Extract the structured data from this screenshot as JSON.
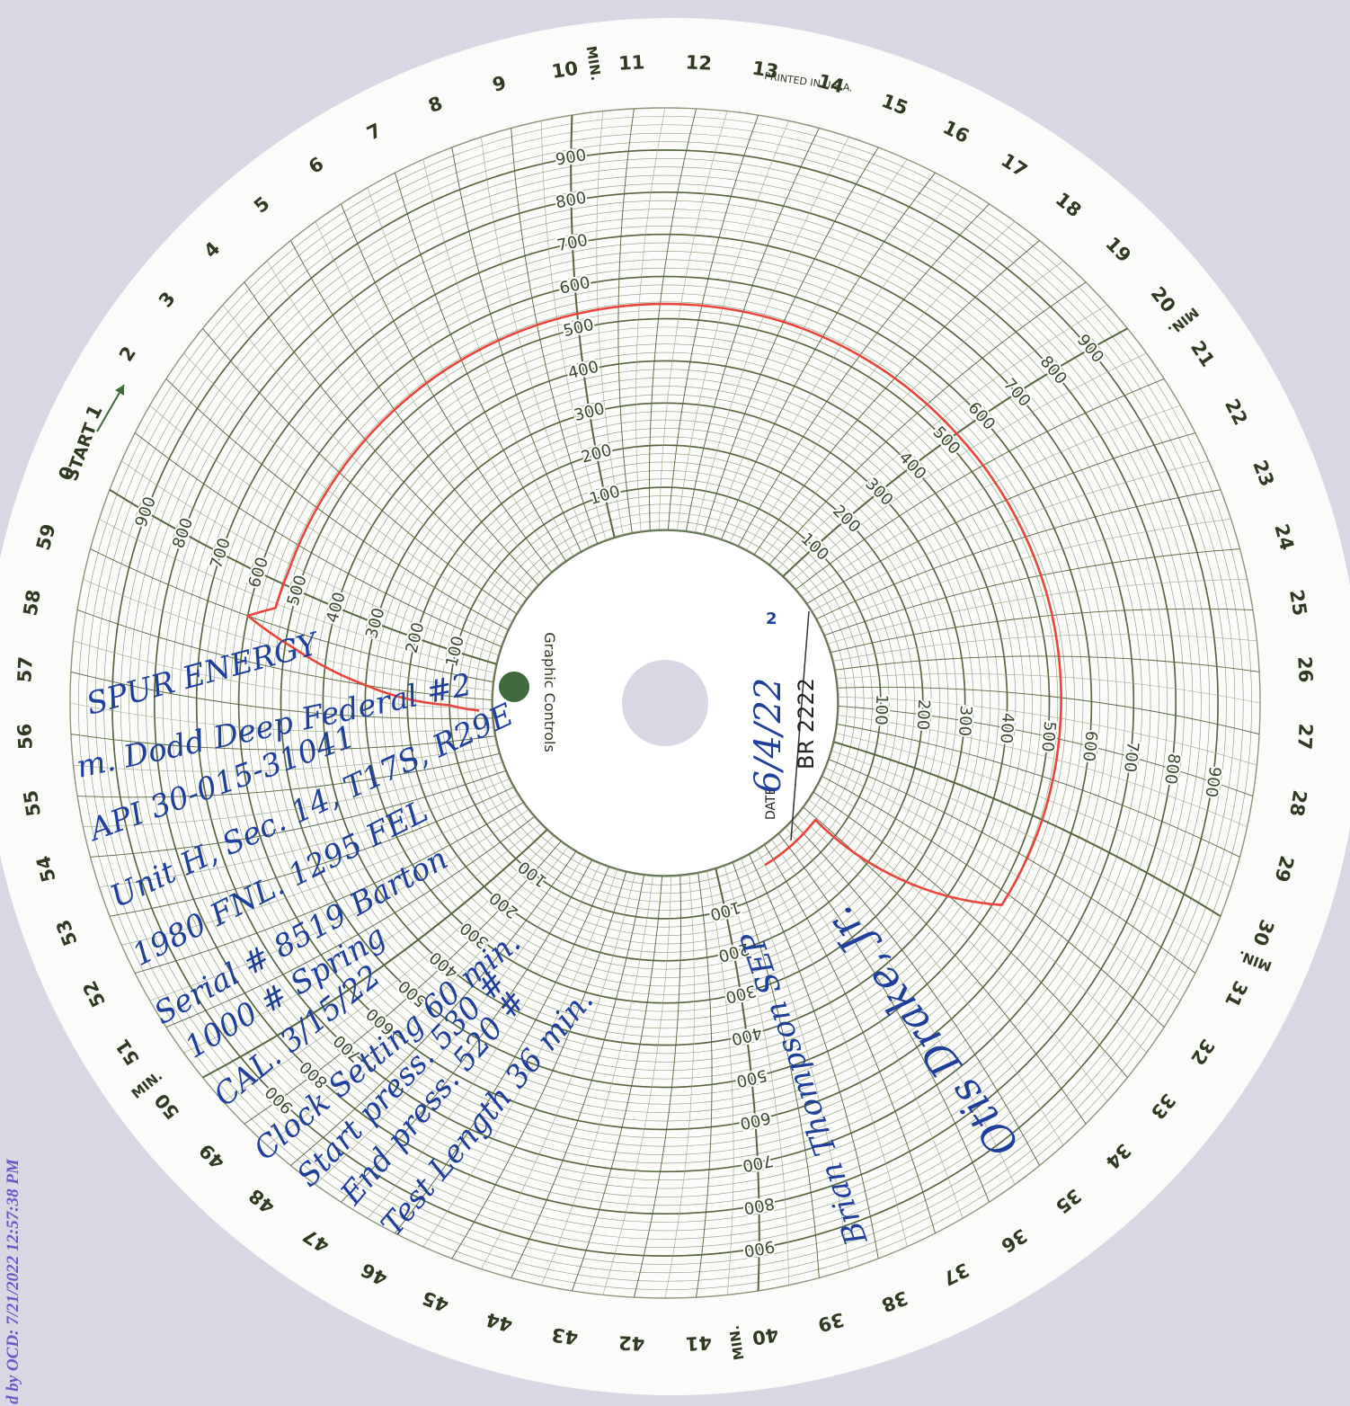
{
  "stamp": "d by OCD: 7/21/2022 12:57:38 PM",
  "printed": "PRINTED IN U.S.A.",
  "start": "START",
  "min_suffix": "MIN.",
  "brand": "Graphic Controls",
  "date_label": "DATE",
  "date": "6/4/22",
  "chart_no": "BR 2222",
  "mark": "2",
  "notes": [
    "SPUR ENERGY",
    "m. Dodd Deep Federal #2",
    "API 30-015-31041",
    "Unit H, Sec. 14, T17S, R29E",
    "1980 FNL. 1295 FEL",
    "Serial # 8519 Barton",
    "1000 # Spring",
    "CAL. 3/15/22",
    "Clock Setting 60 min.",
    "Start press. 530 #",
    "End press. 520 #",
    "Test Length 36 min."
  ],
  "signatures": [
    "Brian Thompson SEP",
    "Otis Drake, Jr."
  ],
  "chart_data": {
    "type": "polar-line",
    "xlim": [
      0,
      60
    ],
    "xticks": [
      0,
      1,
      2,
      3,
      4,
      5,
      6,
      7,
      8,
      9,
      10,
      11,
      12,
      13,
      14,
      15,
      16,
      17,
      18,
      19,
      20,
      21,
      22,
      23,
      24,
      25,
      26,
      27,
      28,
      29,
      30,
      31,
      32,
      33,
      34,
      35,
      36,
      37,
      38,
      39,
      40,
      41,
      42,
      43,
      44,
      45,
      46,
      47,
      48,
      49,
      50,
      51,
      52,
      53,
      54,
      55,
      56,
      57,
      58,
      59
    ],
    "ylim": [
      0,
      1000
    ],
    "yticks": [
      100,
      200,
      300,
      400,
      500,
      600,
      700,
      800,
      900
    ],
    "grid": true,
    "series": [
      {
        "color": "#e8453c",
        "x": [
          57.4,
          57.6,
          58.0,
          58.6,
          59.0,
          59.4,
          0.3,
          5,
          10,
          15,
          20,
          25,
          30,
          32.3,
          34.1,
          37.5
        ],
        "values": [
          30,
          100,
          300,
          480,
          600,
          540,
          535,
          535,
          535,
          535,
          530,
          530,
          525,
          520,
          40,
          40
        ]
      }
    ]
  }
}
